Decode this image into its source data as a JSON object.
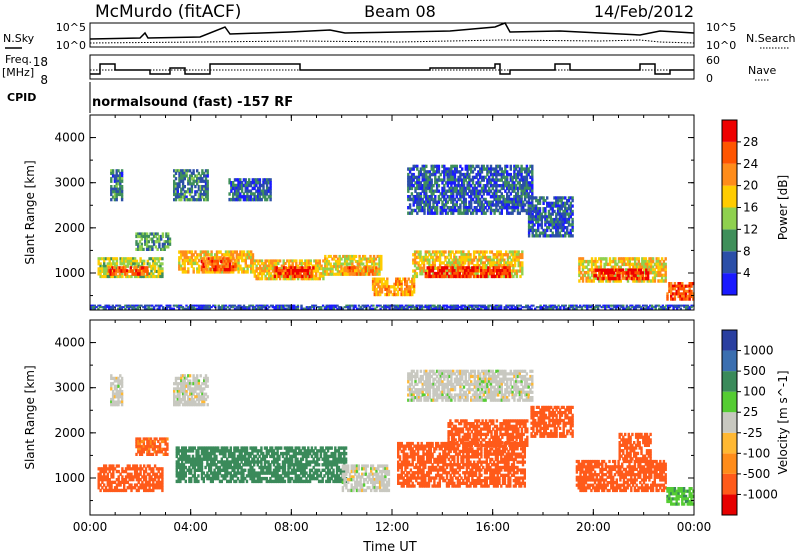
{
  "header": {
    "station": "McMurdo (fitACF)",
    "beam": "Beam 08",
    "date": "14/Feb/2012"
  },
  "side_labels": {
    "nsky": "N.Sky",
    "nsearch": "N.Search",
    "freq": "Freq.",
    "freq_unit": "[MHz]",
    "nave": "Nave",
    "cpid": "CPID",
    "cpid_value": "normalsound (fast) -157 RF"
  },
  "strip_ticks": {
    "noise_left": [
      "10^5",
      "10^0"
    ],
    "noise_right": [
      "10^5",
      "10^0"
    ],
    "freq_left": [
      "18",
      "8"
    ],
    "nave_right": [
      "60",
      "0"
    ]
  },
  "colors": {
    "power_scale": [
      "#1a1aff",
      "#2b4fa8",
      "#3f8f5a",
      "#8fd14f",
      "#ffcc00",
      "#ff8c1a",
      "#ff5500",
      "#ee0000"
    ],
    "velocity_scale": [
      "#e60000",
      "#ff5a1a",
      "#ff8c1a",
      "#ffb833",
      "#c8c8c0",
      "#55cc33",
      "#3a8a5a",
      "#3b6fb0",
      "#2a3fa0"
    ]
  },
  "chart_data": [
    {
      "type": "heatmap",
      "title": "Power",
      "ylabel": "Slant Range [km]",
      "xlabel": "Time UT",
      "x_ticks": [
        "00:00",
        "04:00",
        "08:00",
        "12:00",
        "16:00",
        "20:00",
        "00:00"
      ],
      "y_ticks": [
        "1000",
        "2000",
        "3000",
        "4000"
      ],
      "ylim": [
        180,
        4500
      ],
      "colorbar": {
        "label": "Power [dB]",
        "ticks": [
          "4",
          "8",
          "12",
          "16",
          "20",
          "24",
          "28"
        ],
        "range": [
          0,
          30
        ]
      },
      "regions": [
        {
          "t0": 0.3,
          "t1": 2.9,
          "r0": 900,
          "r1": 1350,
          "level": 14
        },
        {
          "t0": 0.7,
          "t1": 2.3,
          "r0": 950,
          "r1": 1150,
          "level": 24
        },
        {
          "t0": 1.8,
          "t1": 3.2,
          "r0": 1500,
          "r1": 1900,
          "level": 10
        },
        {
          "t0": 0.8,
          "t1": 1.3,
          "r0": 2600,
          "r1": 3300,
          "level": 8
        },
        {
          "t0": 3.3,
          "t1": 4.7,
          "r0": 2600,
          "r1": 3300,
          "level": 8
        },
        {
          "t0": 3.5,
          "t1": 6.5,
          "r0": 1000,
          "r1": 1500,
          "level": 18
        },
        {
          "t0": 4.4,
          "t1": 5.8,
          "r0": 1050,
          "r1": 1350,
          "level": 24
        },
        {
          "t0": 5.5,
          "t1": 7.2,
          "r0": 2600,
          "r1": 3100,
          "level": 6
        },
        {
          "t0": 6.5,
          "t1": 9.3,
          "r0": 850,
          "r1": 1300,
          "level": 18
        },
        {
          "t0": 7.3,
          "t1": 8.9,
          "r0": 900,
          "r1": 1150,
          "level": 28
        },
        {
          "t0": 9.3,
          "t1": 11.6,
          "r0": 950,
          "r1": 1400,
          "level": 16
        },
        {
          "t0": 10.0,
          "t1": 11.4,
          "r0": 950,
          "r1": 1150,
          "level": 22
        },
        {
          "t0": 11.2,
          "t1": 12.9,
          "r0": 500,
          "r1": 900,
          "level": 20
        },
        {
          "t0": 12.8,
          "t1": 17.2,
          "r0": 900,
          "r1": 1500,
          "level": 17
        },
        {
          "t0": 13.3,
          "t1": 16.7,
          "r0": 900,
          "r1": 1150,
          "level": 27
        },
        {
          "t0": 12.6,
          "t1": 17.6,
          "r0": 2300,
          "r1": 3400,
          "level": 6
        },
        {
          "t0": 17.4,
          "t1": 19.2,
          "r0": 1800,
          "r1": 2700,
          "level": 6
        },
        {
          "t0": 19.4,
          "t1": 22.9,
          "r0": 800,
          "r1": 1350,
          "level": 17
        },
        {
          "t0": 20.0,
          "t1": 22.2,
          "r0": 850,
          "r1": 1100,
          "level": 28
        },
        {
          "t0": 22.9,
          "t1": 24.0,
          "r0": 400,
          "r1": 800,
          "level": 24
        },
        {
          "t0": 0.0,
          "t1": 24.0,
          "r0": 200,
          "r1": 300,
          "level": 5
        }
      ]
    },
    {
      "type": "heatmap",
      "title": "Velocity",
      "ylabel": "Slant Range [km]",
      "xlabel": "Time UT",
      "x_ticks": [
        "00:00",
        "04:00",
        "08:00",
        "12:00",
        "16:00",
        "20:00",
        "00:00"
      ],
      "y_ticks": [
        "1000",
        "2000",
        "3000",
        "4000"
      ],
      "ylim": [
        180,
        4500
      ],
      "colorbar": {
        "label": "Velocity [m s^-1]",
        "ticks": [
          "1000",
          "500",
          "100",
          "25",
          "-25",
          "-100",
          "-500",
          "-1000"
        ],
        "range": [
          -1000,
          1000
        ]
      },
      "regions": [
        {
          "t0": 0.3,
          "t1": 2.9,
          "r0": 700,
          "r1": 1300,
          "value": -150
        },
        {
          "t0": 1.8,
          "t1": 3.1,
          "r0": 1500,
          "r1": 1900,
          "value": -120
        },
        {
          "t0": 3.4,
          "t1": 10.2,
          "r0": 900,
          "r1": 1700,
          "value": 300
        },
        {
          "t0": 10.0,
          "t1": 11.9,
          "r0": 700,
          "r1": 1300,
          "value": 0
        },
        {
          "t0": 0.8,
          "t1": 1.3,
          "r0": 2600,
          "r1": 3300,
          "value": 0
        },
        {
          "t0": 3.3,
          "t1": 4.7,
          "r0": 2600,
          "r1": 3300,
          "value": 0
        },
        {
          "t0": 12.2,
          "t1": 17.3,
          "r0": 800,
          "r1": 1800,
          "value": -180
        },
        {
          "t0": 14.2,
          "t1": 17.4,
          "r0": 1700,
          "r1": 2300,
          "value": -200
        },
        {
          "t0": 17.5,
          "t1": 19.2,
          "r0": 1900,
          "r1": 2600,
          "value": -150
        },
        {
          "t0": 19.3,
          "t1": 22.9,
          "r0": 700,
          "r1": 1400,
          "value": -200
        },
        {
          "t0": 21.0,
          "t1": 22.3,
          "r0": 1400,
          "r1": 2000,
          "value": -160
        },
        {
          "t0": 22.9,
          "t1": 24.0,
          "r0": 400,
          "r1": 800,
          "value": 80
        },
        {
          "t0": 12.6,
          "t1": 17.6,
          "r0": 2700,
          "r1": 3400,
          "value": 0
        }
      ]
    }
  ]
}
